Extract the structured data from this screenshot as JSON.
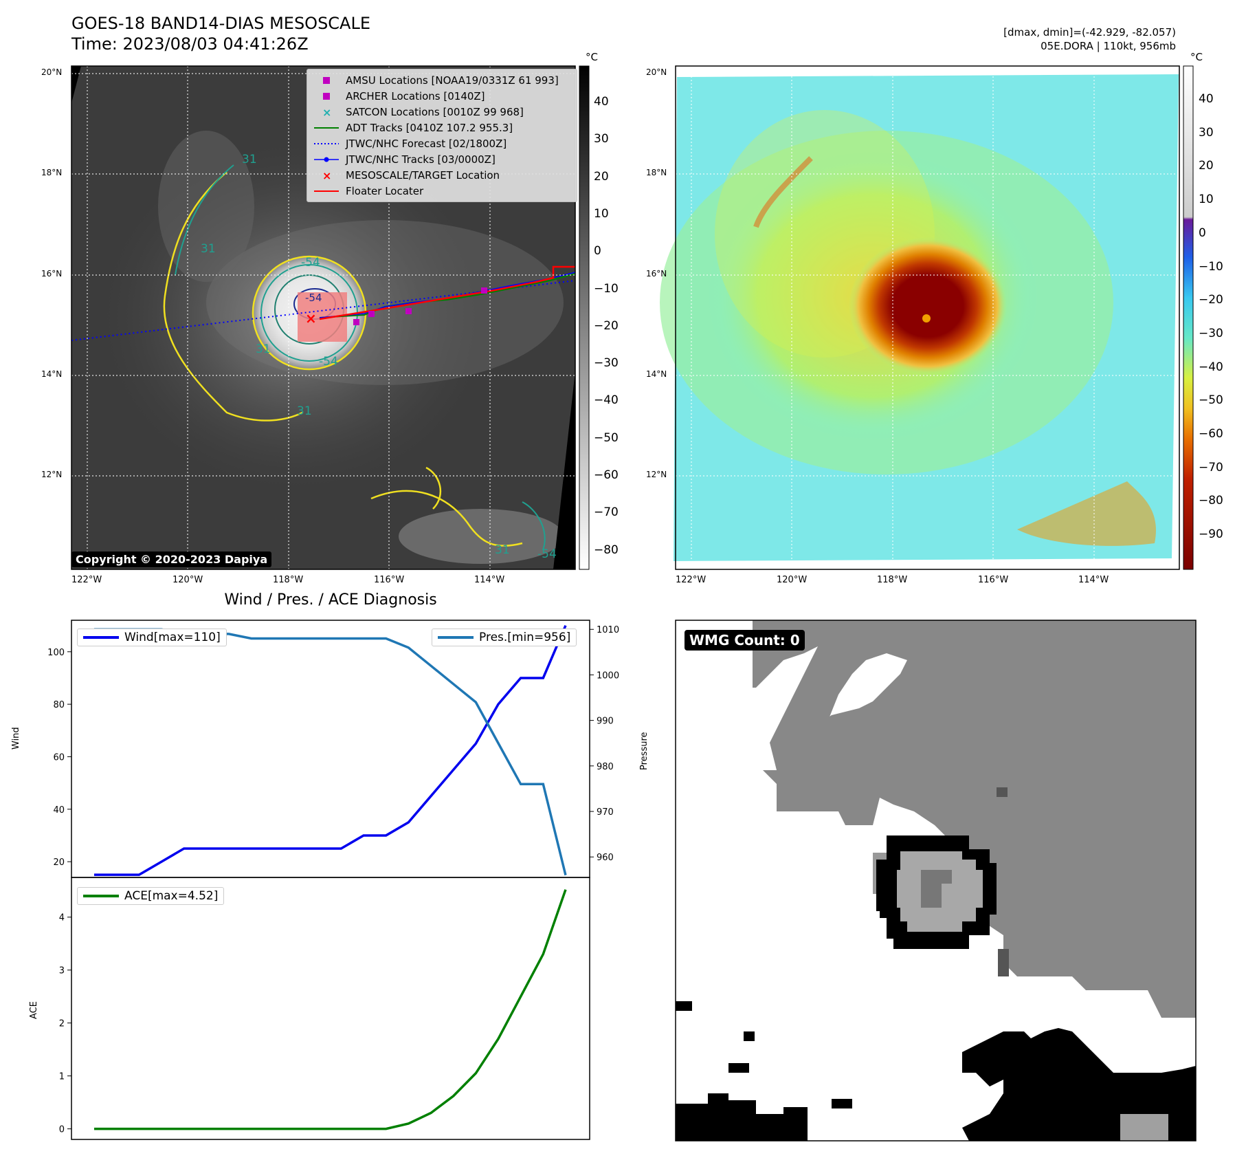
{
  "header": {
    "title": "GOES-18 BAND14-DIAS MESOSCALE",
    "time": "Time: 2023/08/03 04:41:26Z",
    "dmax_dmin": "[dmax, dmin]=(-42.929, -82.057)",
    "storm_info": "05E.DORA | 110kt, 956mb"
  },
  "copyright": "Copyright © 2020-2023 Dapiya",
  "map": {
    "lon_labels": [
      "122°W",
      "120°W",
      "118°W",
      "116°W",
      "114°W"
    ],
    "lat_labels": [
      "20°N",
      "18°N",
      "16°N",
      "14°N",
      "12°N"
    ],
    "unit": "°C",
    "gray_ticks": [
      "40",
      "30",
      "20",
      "10",
      "0",
      "−10",
      "−20",
      "−30",
      "−40",
      "−50",
      "−60",
      "−70",
      "−80"
    ],
    "color_ticks": [
      "40",
      "30",
      "20",
      "10",
      "0",
      "−10",
      "−20",
      "−30",
      "−40",
      "−50",
      "−60",
      "−70",
      "−80",
      "−90"
    ],
    "contour_labels": [
      "31",
      "31",
      "31",
      "31",
      "-54",
      "-54",
      "-54",
      "31",
      "-54"
    ]
  },
  "legend": {
    "items": [
      {
        "label": "AMSU Locations [NOAA19/0331Z 61 993]",
        "marker": "square",
        "color": "#c000c0"
      },
      {
        "label": "ARCHER Locations [0140Z]",
        "marker": "square",
        "color": "#c000c0"
      },
      {
        "label": "SATCON Locations [0010Z 99 968]",
        "marker": "x",
        "color": "#20b0b0"
      },
      {
        "label": "ADT Tracks [0410Z 107.2 955.3]",
        "marker": "line",
        "color": "#008000"
      },
      {
        "label": "JTWC/NHC Forecast [02/1800Z]",
        "marker": "dotted",
        "color": "#0000ff"
      },
      {
        "label": "JTWC/NHC Tracks [03/0000Z]",
        "marker": "dotline",
        "color": "#0000ff"
      },
      {
        "label": "MESOSCALE/TARGET Location",
        "marker": "x",
        "color": "#ff0000"
      },
      {
        "label": "Floater Locater",
        "marker": "line",
        "color": "#ff0000"
      }
    ]
  },
  "diagnosis_title": "Wind / Pres. / ACE Diagnosis",
  "wmg_label": "WMG Count: 0",
  "colors": {
    "wind": "#0000ee",
    "pressure": "#1f77b4",
    "ace": "#008000"
  },
  "chart_data": [
    {
      "type": "line",
      "title": "Wind / Pres. / ACE Diagnosis",
      "ylabel": "Wind",
      "y2label": "Pressure",
      "ylim": [
        14,
        112
      ],
      "y2lim": [
        955.5,
        1012
      ],
      "yticks": [
        20,
        40,
        60,
        80,
        100
      ],
      "y2ticks": [
        960,
        970,
        980,
        990,
        1000,
        1010
      ],
      "series": [
        {
          "name": "Wind[max=110]",
          "axis": "left",
          "values": [
            15,
            15,
            15,
            20,
            25,
            25,
            25,
            25,
            25,
            25,
            25,
            25,
            30,
            30,
            35,
            45,
            55,
            65,
            80,
            90,
            90,
            110
          ]
        },
        {
          "name": "Pres.[min=956]",
          "axis": "right",
          "values": [
            1010,
            1010,
            1010,
            1010,
            1009,
            1009,
            1009,
            1008,
            1008,
            1008,
            1008,
            1008,
            1008,
            1008,
            1006,
            1002,
            998,
            994,
            985,
            976,
            976,
            956
          ]
        }
      ]
    },
    {
      "type": "line",
      "ylabel": "ACE",
      "ylim": [
        -0.2,
        4.75
      ],
      "yticks": [
        0,
        1,
        2,
        3,
        4
      ],
      "series": [
        {
          "name": "ACE[max=4.52]",
          "values": [
            0,
            0,
            0,
            0,
            0,
            0,
            0,
            0,
            0,
            0,
            0,
            0,
            0,
            0,
            0.1,
            0.3,
            0.62,
            1.05,
            1.7,
            2.5,
            3.3,
            4.52
          ]
        }
      ]
    }
  ]
}
